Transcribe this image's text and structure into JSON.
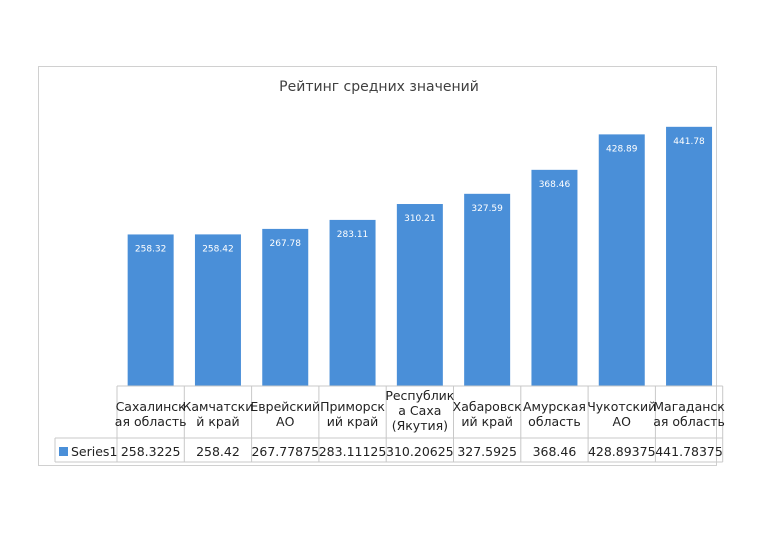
{
  "chart_data": {
    "type": "bar",
    "title": "Рейтинг средних значений",
    "categories": [
      [
        "Сахалинск",
        "ая область"
      ],
      [
        "Камчатски",
        "й край"
      ],
      [
        "Еврейский",
        "АО"
      ],
      [
        "Приморск",
        "ий край"
      ],
      [
        "Республик",
        "а Саха",
        "(Якутия)"
      ],
      [
        "Хабаровск",
        "ий край"
      ],
      [
        "Амурская",
        "область"
      ],
      [
        "Чукотский",
        "АО"
      ],
      [
        "Магаданск",
        "ая область"
      ]
    ],
    "series": [
      {
        "name": "Series1",
        "values": [
          258.3225,
          258.42,
          267.77875,
          283.11125,
          310.20625,
          327.5925,
          368.46,
          428.89375,
          441.78375
        ],
        "data_labels": [
          "258.32",
          "258.42",
          "267.78",
          "283.11",
          "310.21",
          "327.59",
          "368.46",
          "428.89",
          "441.78"
        ],
        "table_values": [
          "258.3225",
          "258.42",
          "267.77875",
          "283.11125",
          "310.20625",
          "327.5925",
          "368.46",
          "428.89375",
          "441.78375"
        ]
      }
    ],
    "ylim": [
      0,
      450
    ],
    "legend": "data-table",
    "bar_color": "#4a8fd8",
    "legend_key_color": "#4a8fd8",
    "grid": false
  }
}
